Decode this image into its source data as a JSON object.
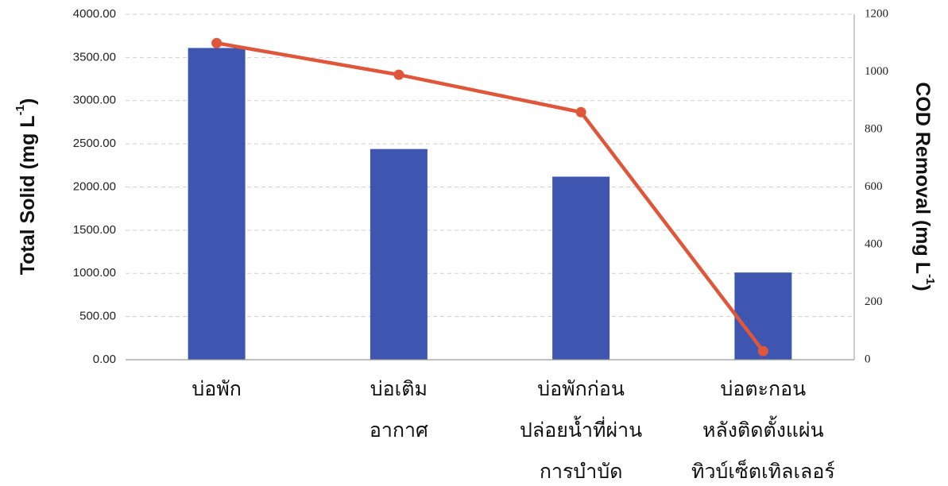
{
  "chart_data": {
    "type": "bar",
    "categories": [
      [
        "บ่อพัก"
      ],
      [
        "บ่อเติม",
        "อากาศ"
      ],
      [
        "บ่อพักก่อน",
        "ปล่อยน้ำที่ผ่าน",
        "การบำบัด"
      ],
      [
        "บ่อตะกอน",
        "หลังติดตั้งแผ่น",
        "ทิวบ์เซ็ตเทิลเลอร์"
      ]
    ],
    "series": [
      {
        "axis": "left",
        "kind": "bar",
        "color": "#3f56b0",
        "values": [
          3610,
          2440,
          2120,
          1010
        ]
      },
      {
        "axis": "right",
        "kind": "line",
        "color": "#e0563a",
        "values": [
          1100,
          990,
          860,
          30
        ]
      }
    ],
    "y_left": {
      "label_main": "Total Solid (mg L",
      "label_sup": "-1",
      "label_end": ")",
      "ylim": [
        0,
        4000
      ],
      "ticks": [
        "0.00",
        "500.00",
        "1000.00",
        "1500.00",
        "2000.00",
        "2500.00",
        "3000.00",
        "3500.00",
        "4000.00"
      ]
    },
    "y_right": {
      "label_main": "COD Removal (mg L",
      "label_sup": "-1",
      "label_end": ")",
      "ylim": [
        0,
        1200
      ],
      "ticks": [
        "0",
        "200",
        "400",
        "600",
        "800",
        "1000",
        "1200"
      ]
    },
    "grid": true
  }
}
